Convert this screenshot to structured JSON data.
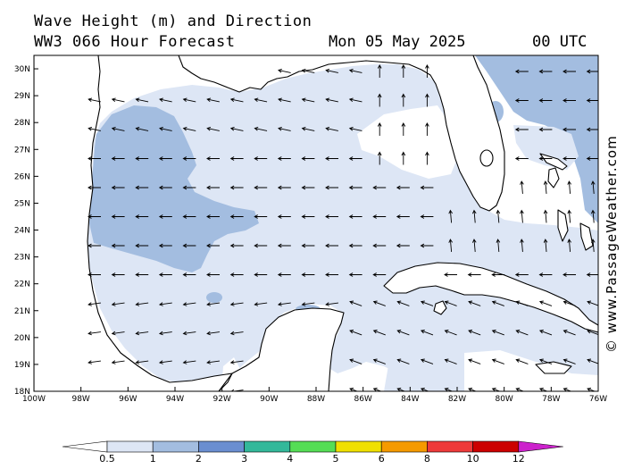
{
  "header": {
    "title": "Wave Height (m) and Direction",
    "subtitle": "WW3 066 Hour Forecast",
    "date": "Mon 05 May 2025",
    "time": "00 UTC"
  },
  "map": {
    "lon_ticks": [
      "100W",
      "98W",
      "96W",
      "94W",
      "92W",
      "90W",
      "88W",
      "86W",
      "84W",
      "82W",
      "80W",
      "78W",
      "76W"
    ],
    "lat_ticks": [
      "18N",
      "19N",
      "20N",
      "21N",
      "22N",
      "23N",
      "24N",
      "25N",
      "26N",
      "27N",
      "28N",
      "29N",
      "30N"
    ],
    "lon_range": [
      -100,
      -76
    ],
    "lat_range": [
      18,
      30.5
    ],
    "wave_direction": "mostly westward (east to west), turning northward in the eastern gulf"
  },
  "colorbar": {
    "levels": [
      "0.5",
      "1",
      "2",
      "3",
      "4",
      "5",
      "6",
      "8",
      "10",
      "12"
    ],
    "colors": [
      "#dde6f5",
      "#a3bde0",
      "#6a8ed0",
      "#33b89a",
      "#55dd55",
      "#f0e000",
      "#f59a00",
      "#ee3a3a",
      "#cc0000",
      "#cc22cc"
    ]
  },
  "credit": "© www.PassageWeather.com"
}
